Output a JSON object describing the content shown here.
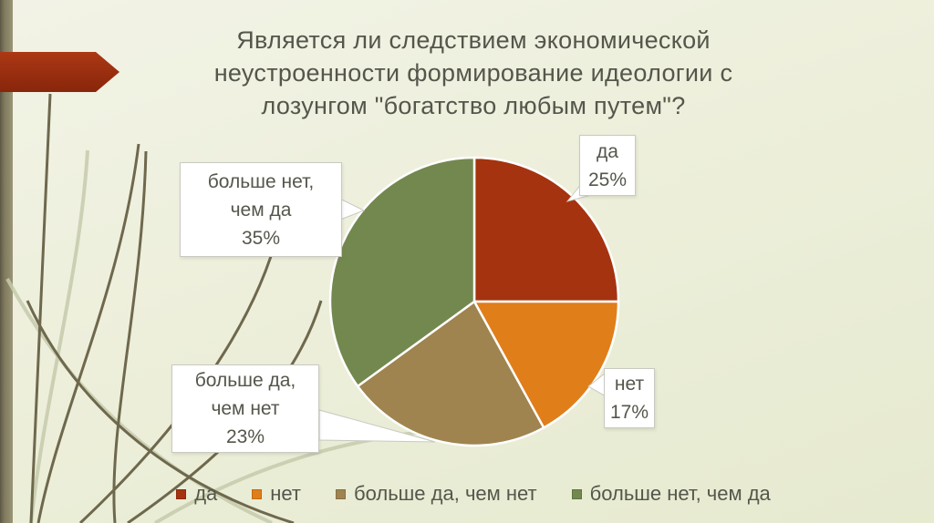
{
  "slide": {
    "title": "Является ли следствием экономической\nнеустроенности формирование идеологии с\nлозунгом \"богатство любым путем\"?"
  },
  "chart_data": {
    "type": "pie",
    "title": "Является ли следствием экономической неустроенности формирование идеологии с лозунгом \"богатство любым путем\"?",
    "unit": "percent",
    "direction": "clockwise",
    "start_angle_deg_from_top": 0,
    "slices": [
      {
        "label": "да",
        "value": 25,
        "color": "#A5330F"
      },
      {
        "label": "нет",
        "value": 17,
        "color": "#E07E1A"
      },
      {
        "label": "больше да, чем нет",
        "value": 23,
        "color": "#9F8450"
      },
      {
        "label": "больше нет, чем да",
        "value": 35,
        "color": "#73884F"
      }
    ],
    "legend_position": "bottom",
    "data_labels": {
      "da": "да\n25%",
      "net": "нет\n17%",
      "more_da": "больше да,\nчем нет\n23%",
      "more_net": "больше нет,\nчем да\n35%"
    }
  },
  "theme": {
    "background": "#EDEFDB",
    "accent_bar": "#8A8468",
    "arrow": "#A53311",
    "text": "#55564B",
    "callout_border": "#C9C9C3",
    "slice_separator": "#FFFFFF"
  }
}
